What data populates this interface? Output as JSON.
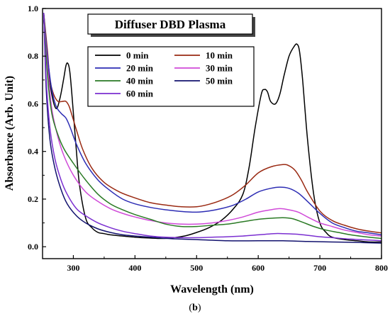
{
  "caption": {
    "open": "(",
    "letter": "b",
    "close": ")"
  },
  "chart_data": {
    "type": "line",
    "title": "Diffuser DBD Plasma",
    "xlabel": "Wavelength (nm)",
    "ylabel": "Absorbance (Arb. Unit)",
    "xlim": [
      250,
      800
    ],
    "ylim": [
      -0.05,
      1.0
    ],
    "xticks": [
      300,
      400,
      500,
      600,
      700,
      800
    ],
    "yticks": [
      0.0,
      0.2,
      0.4,
      0.6,
      0.8,
      1.0
    ],
    "yticklabels": [
      "0.0",
      "0.2",
      "0.4",
      "0.6",
      "0.8",
      "1.0"
    ],
    "grid": false,
    "legend_position": "top-left",
    "series": [
      {
        "name": "0 min",
        "color": "#000000",
        "x": [
          252,
          258,
          265,
          272,
          278,
          284,
          288,
          291,
          294,
          297,
          300,
          305,
          310,
          320,
          330,
          340,
          350,
          360,
          380,
          400,
          420,
          450,
          480,
          500,
          520,
          540,
          560,
          575,
          585,
          595,
          605,
          610,
          615,
          620,
          628,
          635,
          642,
          650,
          658,
          663,
          667,
          672,
          680,
          690,
          700,
          710,
          720,
          740,
          760,
          780,
          800
        ],
        "y": [
          0.95,
          0.78,
          0.64,
          0.58,
          0.62,
          0.7,
          0.76,
          0.77,
          0.74,
          0.66,
          0.56,
          0.4,
          0.26,
          0.12,
          0.08,
          0.06,
          0.055,
          0.05,
          0.045,
          0.04,
          0.037,
          0.035,
          0.045,
          0.06,
          0.08,
          0.11,
          0.16,
          0.22,
          0.33,
          0.5,
          0.64,
          0.66,
          0.65,
          0.61,
          0.6,
          0.64,
          0.72,
          0.8,
          0.84,
          0.85,
          0.82,
          0.7,
          0.45,
          0.22,
          0.1,
          0.06,
          0.04,
          0.03,
          0.025,
          0.02,
          0.02
        ]
      },
      {
        "name": "10 min",
        "color": "#9a2a13",
        "x": [
          252,
          258,
          262,
          268,
          275,
          282,
          288,
          293,
          298,
          305,
          315,
          330,
          350,
          375,
          400,
          425,
          450,
          475,
          500,
          520,
          540,
          560,
          580,
          600,
          620,
          640,
          650,
          660,
          670,
          680,
          700,
          720,
          740,
          760,
          780,
          800
        ],
        "y": [
          0.98,
          0.82,
          0.7,
          0.64,
          0.61,
          0.61,
          0.61,
          0.59,
          0.55,
          0.49,
          0.41,
          0.33,
          0.27,
          0.23,
          0.205,
          0.185,
          0.175,
          0.168,
          0.168,
          0.178,
          0.195,
          0.22,
          0.26,
          0.31,
          0.335,
          0.345,
          0.34,
          0.32,
          0.28,
          0.23,
          0.15,
          0.11,
          0.09,
          0.075,
          0.065,
          0.058
        ]
      },
      {
        "name": "20 min",
        "color": "#2d2db4",
        "x": [
          252,
          258,
          265,
          272,
          280,
          288,
          295,
          305,
          320,
          340,
          360,
          380,
          400,
          425,
          450,
          475,
          500,
          520,
          540,
          560,
          580,
          600,
          620,
          635,
          650,
          665,
          680,
          700,
          720,
          740,
          760,
          780,
          800
        ],
        "y": [
          0.98,
          0.8,
          0.66,
          0.59,
          0.56,
          0.54,
          0.5,
          0.43,
          0.35,
          0.28,
          0.235,
          0.2,
          0.18,
          0.165,
          0.155,
          0.148,
          0.145,
          0.15,
          0.16,
          0.175,
          0.2,
          0.23,
          0.245,
          0.25,
          0.245,
          0.225,
          0.19,
          0.14,
          0.1,
          0.08,
          0.065,
          0.058,
          0.05
        ]
      },
      {
        "name": "30 min",
        "color": "#d04ad8",
        "x": [
          252,
          258,
          265,
          275,
          285,
          300,
          320,
          340,
          360,
          380,
          400,
          425,
          450,
          475,
          500,
          525,
          550,
          575,
          600,
          620,
          635,
          650,
          665,
          680,
          700,
          720,
          740,
          760,
          780,
          800
        ],
        "y": [
          0.98,
          0.76,
          0.58,
          0.46,
          0.38,
          0.3,
          0.23,
          0.19,
          0.16,
          0.14,
          0.125,
          0.11,
          0.1,
          0.095,
          0.095,
          0.1,
          0.11,
          0.125,
          0.145,
          0.155,
          0.16,
          0.155,
          0.145,
          0.125,
          0.1,
          0.085,
          0.07,
          0.06,
          0.05,
          0.045
        ]
      },
      {
        "name": "40 min",
        "color": "#2a7a24",
        "x": [
          252,
          258,
          265,
          275,
          285,
          300,
          320,
          340,
          360,
          380,
          400,
          425,
          450,
          475,
          500,
          525,
          550,
          575,
          600,
          625,
          640,
          655,
          670,
          690,
          710,
          730,
          750,
          780,
          800
        ],
        "y": [
          0.98,
          0.72,
          0.56,
          0.47,
          0.41,
          0.35,
          0.28,
          0.22,
          0.18,
          0.155,
          0.135,
          0.115,
          0.095,
          0.085,
          0.085,
          0.09,
          0.095,
          0.105,
          0.115,
          0.12,
          0.122,
          0.118,
          0.105,
          0.085,
          0.07,
          0.06,
          0.05,
          0.04,
          0.035
        ]
      },
      {
        "name": "50 min",
        "color": "#12126e",
        "x": [
          252,
          256,
          262,
          270,
          280,
          290,
          305,
          320,
          340,
          360,
          380,
          400,
          425,
          450,
          475,
          500,
          550,
          600,
          640,
          680,
          720,
          760,
          800
        ],
        "y": [
          0.98,
          0.66,
          0.45,
          0.33,
          0.24,
          0.18,
          0.13,
          0.1,
          0.075,
          0.06,
          0.05,
          0.045,
          0.04,
          0.035,
          0.032,
          0.03,
          0.025,
          0.025,
          0.025,
          0.022,
          0.02,
          0.018,
          0.015
        ]
      },
      {
        "name": "60 min",
        "color": "#7b2fd1",
        "x": [
          252,
          256,
          262,
          270,
          280,
          290,
          305,
          320,
          340,
          360,
          380,
          400,
          425,
          450,
          475,
          500,
          525,
          550,
          575,
          600,
          625,
          640,
          660,
          680,
          700,
          720,
          750,
          780,
          800
        ],
        "y": [
          0.98,
          0.7,
          0.5,
          0.37,
          0.28,
          0.22,
          0.16,
          0.13,
          0.1,
          0.08,
          0.065,
          0.055,
          0.045,
          0.04,
          0.038,
          0.038,
          0.04,
          0.042,
          0.045,
          0.05,
          0.055,
          0.055,
          0.053,
          0.048,
          0.042,
          0.038,
          0.032,
          0.028,
          0.025
        ]
      }
    ]
  }
}
